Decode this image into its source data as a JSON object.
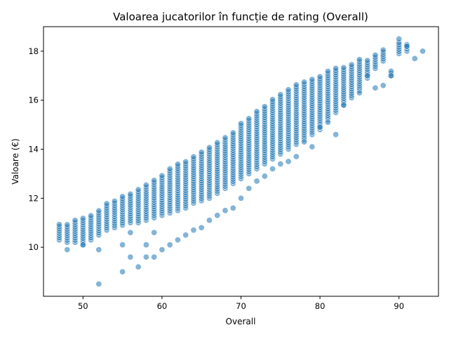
{
  "chart_data": {
    "type": "scatter",
    "title": "Valoarea jucatorilor în funcție de rating (Overall)",
    "xlabel": "Overall",
    "ylabel": "Valoare (€)",
    "xlim": [
      45,
      95
    ],
    "ylim": [
      8,
      19
    ],
    "xticks": [
      50,
      60,
      70,
      80,
      90
    ],
    "yticks": [
      10,
      12,
      14,
      16,
      18
    ],
    "grid": false,
    "point_color": "#1f77b4",
    "bands": [
      [
        47,
        10.3,
        11.0
      ],
      [
        48,
        10.2,
        11.0
      ],
      [
        49,
        10.2,
        11.1
      ],
      [
        50,
        10.1,
        11.2
      ],
      [
        51,
        10.3,
        11.3
      ],
      [
        52,
        10.5,
        11.5
      ],
      [
        53,
        10.7,
        11.8
      ],
      [
        54,
        10.8,
        11.9
      ],
      [
        55,
        10.9,
        12.1
      ],
      [
        56,
        11.0,
        12.2
      ],
      [
        57,
        11.0,
        12.4
      ],
      [
        58,
        11.1,
        12.6
      ],
      [
        59,
        11.2,
        12.8
      ],
      [
        60,
        11.3,
        13.0
      ],
      [
        61,
        11.4,
        13.2
      ],
      [
        62,
        11.5,
        13.4
      ],
      [
        63,
        11.6,
        13.5
      ],
      [
        64,
        11.8,
        13.7
      ],
      [
        65,
        11.9,
        13.9
      ],
      [
        66,
        12.0,
        14.1
      ],
      [
        67,
        12.2,
        14.3
      ],
      [
        68,
        12.4,
        14.5
      ],
      [
        69,
        12.6,
        14.7
      ],
      [
        70,
        12.8,
        15.1
      ],
      [
        71,
        13.0,
        15.3
      ],
      [
        72,
        13.2,
        15.6
      ],
      [
        73,
        13.4,
        15.8
      ],
      [
        74,
        13.6,
        16.1
      ],
      [
        75,
        13.8,
        16.3
      ],
      [
        76,
        14.0,
        16.5
      ],
      [
        77,
        14.2,
        16.7
      ],
      [
        78,
        14.4,
        16.8
      ],
      [
        79,
        14.6,
        16.9
      ],
      [
        80,
        14.8,
        17.0
      ],
      [
        81,
        15.2,
        17.2
      ],
      [
        82,
        15.5,
        17.3
      ],
      [
        83,
        15.8,
        17.4
      ],
      [
        84,
        16.1,
        17.5
      ],
      [
        85,
        16.4,
        17.7
      ],
      [
        86,
        16.9,
        17.7
      ],
      [
        87,
        17.3,
        17.9
      ],
      [
        88,
        17.6,
        18.1
      ],
      [
        89,
        17.0,
        17.2
      ],
      [
        90,
        17.9,
        18.4
      ],
      [
        91,
        18.0,
        18.3
      ]
    ],
    "outliers": [
      [
        52,
        8.5
      ],
      [
        55,
        9.0
      ],
      [
        57,
        9.2
      ],
      [
        56,
        9.6
      ],
      [
        58,
        9.6
      ],
      [
        59,
        9.6
      ],
      [
        60,
        9.9
      ],
      [
        52,
        9.9
      ],
      [
        48,
        9.9
      ],
      [
        50,
        10.1
      ],
      [
        55,
        10.1
      ],
      [
        58,
        10.1
      ],
      [
        61,
        10.1
      ],
      [
        56,
        10.6
      ],
      [
        59,
        10.6
      ],
      [
        62,
        10.3
      ],
      [
        63,
        10.5
      ],
      [
        64,
        10.7
      ],
      [
        65,
        10.8
      ],
      [
        66,
        11.1
      ],
      [
        67,
        11.3
      ],
      [
        68,
        11.5
      ],
      [
        69,
        11.6
      ],
      [
        70,
        12.0
      ],
      [
        71,
        12.4
      ],
      [
        72,
        12.7
      ],
      [
        73,
        12.9
      ],
      [
        74,
        13.2
      ],
      [
        75,
        13.4
      ],
      [
        76,
        13.5
      ],
      [
        77,
        13.7
      ],
      [
        78,
        14.3
      ],
      [
        79,
        14.1
      ],
      [
        80,
        14.9
      ],
      [
        81,
        15.1
      ],
      [
        82,
        14.6
      ],
      [
        83,
        15.8
      ],
      [
        87,
        16.5
      ],
      [
        88,
        16.6
      ],
      [
        89,
        17.0
      ],
      [
        92,
        17.7
      ],
      [
        93,
        18.0
      ],
      [
        90,
        18.5
      ],
      [
        91,
        18.2
      ],
      [
        85,
        16.3
      ],
      [
        86,
        17.0
      ]
    ]
  }
}
